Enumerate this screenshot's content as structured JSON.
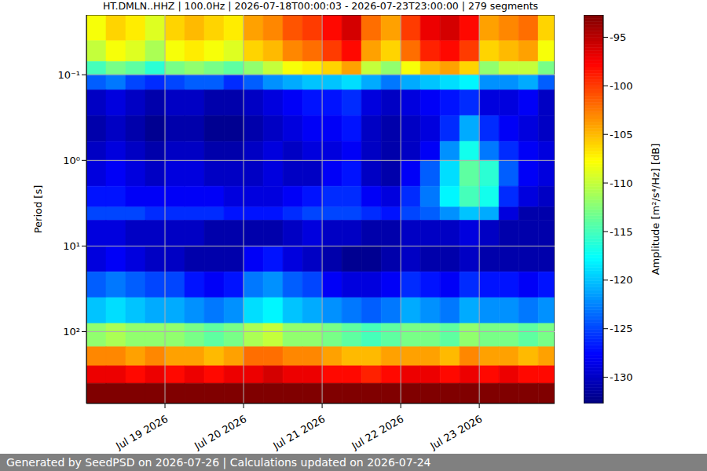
{
  "chart_data": {
    "type": "heatmap",
    "title": "HT.DMLN..HHZ | 100.0Hz | 2026-07-18T00:00:03 - 2026-07-23T23:00:00 | 279 segments",
    "footer": "Generated by SeedPSD on 2026-07-26 | Calculations updated on 2026-07-24",
    "y_label": "Period [s]",
    "colorbar_label": "Amplitude [m²/s⁴/Hz] [dB]",
    "color": "jet",
    "log": "y",
    "grid": true,
    "xlim": [
      "2026-07-18T00:00:03",
      "2026-07-23T23:00:00"
    ],
    "xticks": [
      {
        "value": "2026-07-19T00:00:00",
        "label": "Jul 19 2026"
      },
      {
        "value": "2026-07-20T00:00:00",
        "label": "Jul 20 2026"
      },
      {
        "value": "2026-07-21T00:00:00",
        "label": "Jul 21 2026"
      },
      {
        "value": "2026-07-22T00:00:00",
        "label": "Jul 22 2026"
      },
      {
        "value": "2026-07-23T00:00:00",
        "label": "Jul 23 2026"
      }
    ],
    "ylim": [
      0.02,
      690
    ],
    "yticks": [
      {
        "value": 0.1,
        "label": "10⁻¹"
      },
      {
        "value": 1,
        "label": "10⁰"
      },
      {
        "value": 10,
        "label": "10¹"
      },
      {
        "value": 100,
        "label": "10²"
      }
    ],
    "colorbar_lim": [
      -132.7,
      -92.7
    ],
    "colorbar_ticks": [
      -95,
      -100,
      -105,
      -110,
      -115,
      -120,
      -125,
      -130
    ],
    "x_bins": [
      "2026-07-18T00:00:03",
      "2026-07-18T06:00:00",
      "2026-07-18T12:00:00",
      "2026-07-18T18:00:00",
      "2026-07-19T00:00:00",
      "2026-07-19T06:00:00",
      "2026-07-19T12:00:00",
      "2026-07-19T18:00:00",
      "2026-07-20T00:00:00",
      "2026-07-20T06:00:00",
      "2026-07-20T12:00:00",
      "2026-07-20T18:00:00",
      "2026-07-21T00:00:00",
      "2026-07-21T06:00:00",
      "2026-07-21T12:00:00",
      "2026-07-21T18:00:00",
      "2026-07-22T00:00:00",
      "2026-07-22T06:00:00",
      "2026-07-22T12:00:00",
      "2026-07-22T18:00:00",
      "2026-07-23T00:00:00",
      "2026-07-23T06:00:00",
      "2026-07-23T12:00:00",
      "2026-07-23T18:00:00",
      "2026-07-23T23:00:00"
    ],
    "y_bins": [
      0.02,
      0.04,
      0.07,
      0.1,
      0.15,
      0.3,
      0.6,
      1,
      2,
      3.5,
      5,
      10,
      20,
      40,
      80,
      150,
      250,
      400,
      690
    ],
    "cells": [
      [
        -108,
        -106,
        -107,
        -109,
        -106,
        -105,
        -106,
        -107,
        -104,
        -103,
        -101,
        -100,
        -98,
        -96,
        -102,
        -104,
        -100,
        -97,
        -96,
        -98,
        -104,
        -103,
        -102,
        -106
      ],
      [
        -110,
        -108,
        -109,
        -111,
        -108,
        -107,
        -108,
        -109,
        -106,
        -105,
        -103,
        -102,
        -100,
        -98,
        -104,
        -106,
        -102,
        -99,
        -98,
        -100,
        -106,
        -105,
        -104,
        -108
      ],
      [
        -115,
        -113,
        -114,
        -116,
        -113,
        -112,
        -113,
        -114,
        -112,
        -110,
        -108,
        -107,
        -106,
        -104,
        -110,
        -112,
        -108,
        -105,
        -104,
        -106,
        -112,
        -110,
        -110,
        -113
      ],
      [
        -124,
        -123,
        -125,
        -126,
        -125,
        -124,
        -124,
        -126,
        -124,
        -122,
        -121,
        -120,
        -120,
        -119,
        -121,
        -123,
        -121,
        -120,
        -119,
        -118,
        -122,
        -122,
        -121,
        -124
      ],
      [
        -130,
        -129,
        -130,
        -131,
        -130,
        -130,
        -131,
        -131,
        -130,
        -129,
        -128,
        -127,
        -127,
        -126,
        -129,
        -130,
        -129,
        -128,
        -127,
        -126,
        -129,
        -129,
        -128,
        -130
      ],
      [
        -131,
        -130,
        -131,
        -132,
        -131,
        -131,
        -132,
        -132,
        -131,
        -130,
        -129,
        -128,
        -128,
        -127,
        -130,
        -131,
        -130,
        -129,
        -126,
        -121,
        -126,
        -128,
        -129,
        -130
      ],
      [
        -130,
        -129,
        -130,
        -131,
        -130,
        -130,
        -131,
        -131,
        -130,
        -129,
        -130,
        -129,
        -129,
        -128,
        -130,
        -131,
        -130,
        -128,
        -122,
        -117,
        -123,
        -126,
        -128,
        -129
      ],
      [
        -129,
        -128,
        -129,
        -130,
        -129,
        -129,
        -130,
        -130,
        -130,
        -129,
        -130,
        -130,
        -128,
        -127,
        -130,
        -131,
        -128,
        -124,
        -119,
        -114,
        -116,
        -124,
        -128,
        -129
      ],
      [
        -127,
        -127,
        -128,
        -128,
        -128,
        -128,
        -128,
        -129,
        -129,
        -129,
        -128,
        -127,
        -126,
        -126,
        -128,
        -129,
        -126,
        -123,
        -118,
        -115,
        -117,
        -126,
        -129,
        -130
      ],
      [
        -125,
        -125,
        -125,
        -126,
        -126,
        -126,
        -126,
        -127,
        -127,
        -127,
        -126,
        -125,
        -125,
        -125,
        -126,
        -127,
        -125,
        -124,
        -122,
        -120,
        -121,
        -129,
        -131,
        -131
      ],
      [
        -129,
        -129,
        -130,
        -130,
        -130,
        -130,
        -131,
        -131,
        -131,
        -131,
        -130,
        -129,
        -130,
        -130,
        -131,
        -131,
        -130,
        -130,
        -130,
        -129,
        -130,
        -131,
        -131,
        -131
      ],
      [
        -129,
        -128,
        -129,
        -130,
        -130,
        -131,
        -131,
        -131,
        -128,
        -127,
        -129,
        -130,
        -131,
        -132,
        -132,
        -131,
        -130,
        -131,
        -131,
        -130,
        -131,
        -131,
        -131,
        -131
      ],
      [
        -124,
        -123,
        -124,
        -125,
        -125,
        -127,
        -128,
        -127,
        -123,
        -122,
        -124,
        -125,
        -128,
        -129,
        -129,
        -128,
        -126,
        -127,
        -128,
        -126,
        -127,
        -127,
        -128,
        -127
      ],
      [
        -120,
        -119,
        -120,
        -121,
        -121,
        -122,
        -123,
        -122,
        -119,
        -118,
        -120,
        -121,
        -122,
        -123,
        -124,
        -123,
        -121,
        -122,
        -123,
        -121,
        -122,
        -122,
        -123,
        -122
      ],
      [
        -112,
        -111,
        -112,
        -112,
        -112,
        -113,
        -114,
        -113,
        -111,
        -110,
        -112,
        -112,
        -113,
        -114,
        -115,
        -114,
        -113,
        -113,
        -114,
        -112,
        -113,
        -113,
        -114,
        -113
      ],
      [
        -103,
        -103,
        -104,
        -103,
        -104,
        -104,
        -105,
        -104,
        -102,
        -102,
        -103,
        -103,
        -104,
        -105,
        -105,
        -104,
        -104,
        -104,
        -105,
        -103,
        -104,
        -104,
        -105,
        -104
      ],
      [
        -97,
        -97,
        -98,
        -97,
        -98,
        -97,
        -98,
        -97,
        -97,
        -96,
        -97,
        -97,
        -98,
        -98,
        -99,
        -98,
        -97,
        -97,
        -98,
        -97,
        -98,
        -97,
        -98,
        -98
      ],
      [
        -91,
        -91,
        -91,
        -91,
        -91,
        -91,
        -91,
        -91,
        -91,
        -91,
        -91,
        -91,
        -91,
        -91,
        -91,
        -91,
        -91,
        -91,
        -91,
        -91,
        -91,
        -91,
        -91,
        -91
      ]
    ]
  }
}
